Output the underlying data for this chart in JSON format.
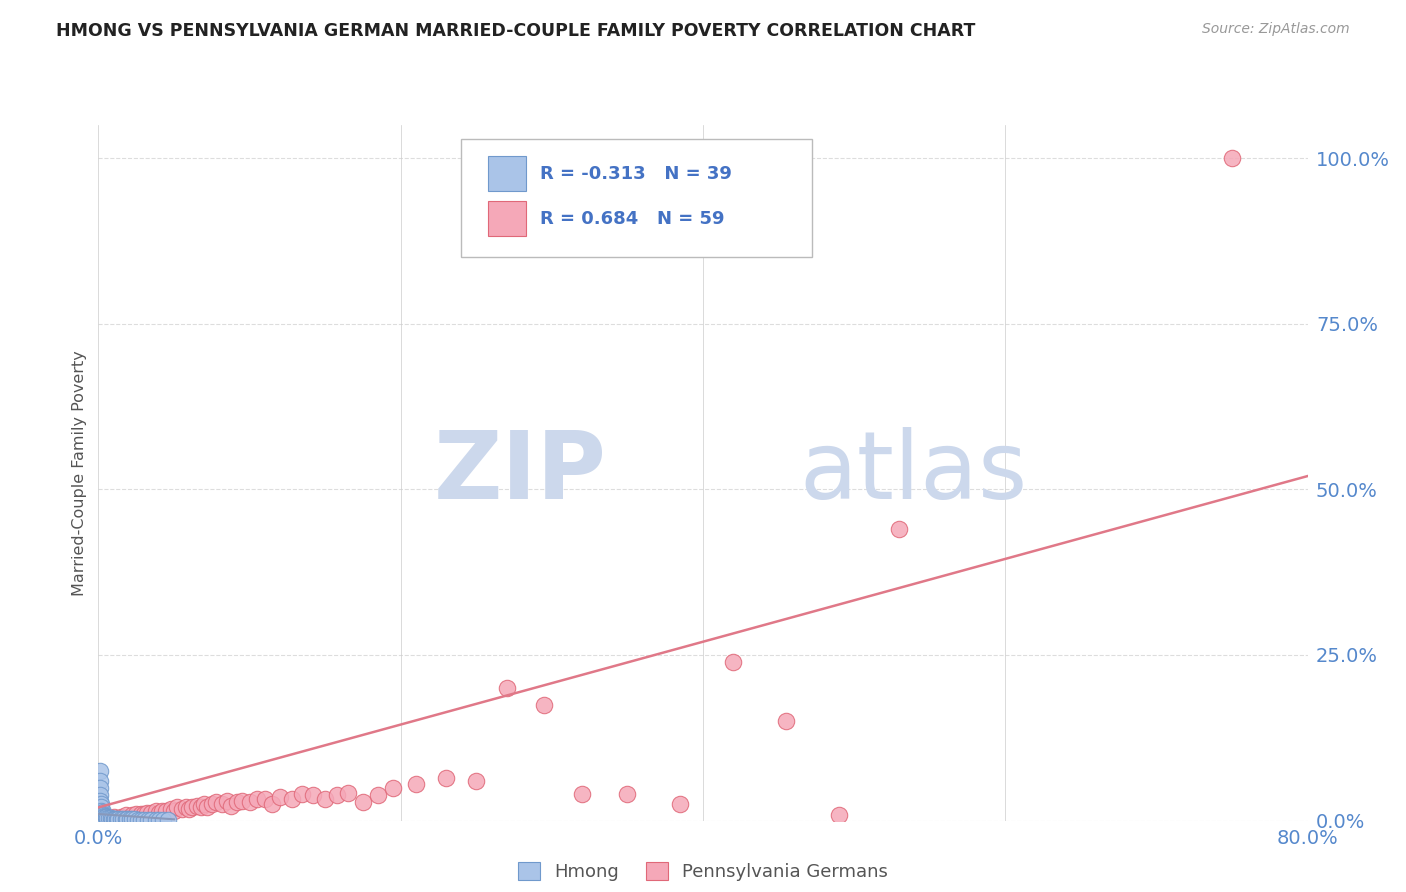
{
  "title": "HMONG VS PENNSYLVANIA GERMAN MARRIED-COUPLE FAMILY POVERTY CORRELATION CHART",
  "source": "Source: ZipAtlas.com",
  "ylabel": "Married-Couple Family Poverty",
  "xmin": 0.0,
  "xmax": 0.8,
  "ymin": 0.0,
  "ymax": 1.05,
  "yticks": [
    0.0,
    0.25,
    0.5,
    0.75,
    1.0
  ],
  "ytick_labels": [
    "0.0%",
    "25.0%",
    "50.0%",
    "75.0%",
    "100.0%"
  ],
  "hmong_R": -0.313,
  "hmong_N": 39,
  "pagerman_R": 0.684,
  "pagerman_N": 59,
  "hmong_color": "#aac4e8",
  "pagerman_color": "#f5a8b8",
  "hmong_edge_color": "#7099cc",
  "pagerman_edge_color": "#e06878",
  "pagerman_line_color": "#e07888",
  "hmong_line_color": "#8899bb",
  "watermark_zip": "ZIP",
  "watermark_atlas": "atlas",
  "watermark_color": "#ccd8ec",
  "legend_color": "#4472c4",
  "tick_color": "#5588cc",
  "background_color": "#ffffff",
  "grid_color": "#dddddd",
  "hmong_x": [
    0.001,
    0.001,
    0.001,
    0.001,
    0.001,
    0.002,
    0.002,
    0.002,
    0.003,
    0.003,
    0.003,
    0.004,
    0.004,
    0.005,
    0.005,
    0.006,
    0.007,
    0.008,
    0.009,
    0.01,
    0.011,
    0.012,
    0.013,
    0.015,
    0.016,
    0.018,
    0.019,
    0.021,
    0.022,
    0.024,
    0.026,
    0.028,
    0.03,
    0.033,
    0.035,
    0.038,
    0.04,
    0.043,
    0.046
  ],
  "hmong_y": [
    0.075,
    0.06,
    0.05,
    0.038,
    0.03,
    0.025,
    0.02,
    0.015,
    0.013,
    0.01,
    0.008,
    0.007,
    0.006,
    0.005,
    0.005,
    0.004,
    0.004,
    0.004,
    0.003,
    0.003,
    0.003,
    0.002,
    0.002,
    0.002,
    0.002,
    0.002,
    0.002,
    0.002,
    0.002,
    0.002,
    0.001,
    0.001,
    0.001,
    0.001,
    0.001,
    0.001,
    0.001,
    0.001,
    0.001
  ],
  "pagerman_x": [
    0.005,
    0.01,
    0.015,
    0.018,
    0.022,
    0.025,
    0.028,
    0.03,
    0.032,
    0.035,
    0.038,
    0.04,
    0.042,
    0.045,
    0.048,
    0.05,
    0.052,
    0.055,
    0.058,
    0.06,
    0.062,
    0.065,
    0.068,
    0.07,
    0.072,
    0.075,
    0.078,
    0.082,
    0.085,
    0.088,
    0.092,
    0.095,
    0.1,
    0.105,
    0.11,
    0.115,
    0.12,
    0.128,
    0.135,
    0.142,
    0.15,
    0.158,
    0.165,
    0.175,
    0.185,
    0.195,
    0.21,
    0.23,
    0.25,
    0.27,
    0.295,
    0.32,
    0.35,
    0.385,
    0.42,
    0.455,
    0.49,
    0.53,
    0.75
  ],
  "pagerman_y": [
    0.005,
    0.005,
    0.005,
    0.008,
    0.008,
    0.01,
    0.01,
    0.01,
    0.012,
    0.012,
    0.015,
    0.012,
    0.015,
    0.015,
    0.018,
    0.015,
    0.02,
    0.018,
    0.02,
    0.018,
    0.02,
    0.022,
    0.02,
    0.025,
    0.02,
    0.025,
    0.028,
    0.025,
    0.03,
    0.022,
    0.028,
    0.03,
    0.028,
    0.032,
    0.032,
    0.025,
    0.035,
    0.032,
    0.04,
    0.038,
    0.032,
    0.038,
    0.042,
    0.028,
    0.038,
    0.05,
    0.055,
    0.065,
    0.06,
    0.2,
    0.175,
    0.04,
    0.04,
    0.025,
    0.24,
    0.15,
    0.008,
    0.44,
    1.0
  ],
  "pg_line_x": [
    0.0,
    0.8
  ],
  "pg_line_y": [
    0.02,
    0.52
  ],
  "hm_line_x": [
    0.0,
    0.05
  ],
  "hm_line_y": [
    0.01,
    0.002
  ]
}
